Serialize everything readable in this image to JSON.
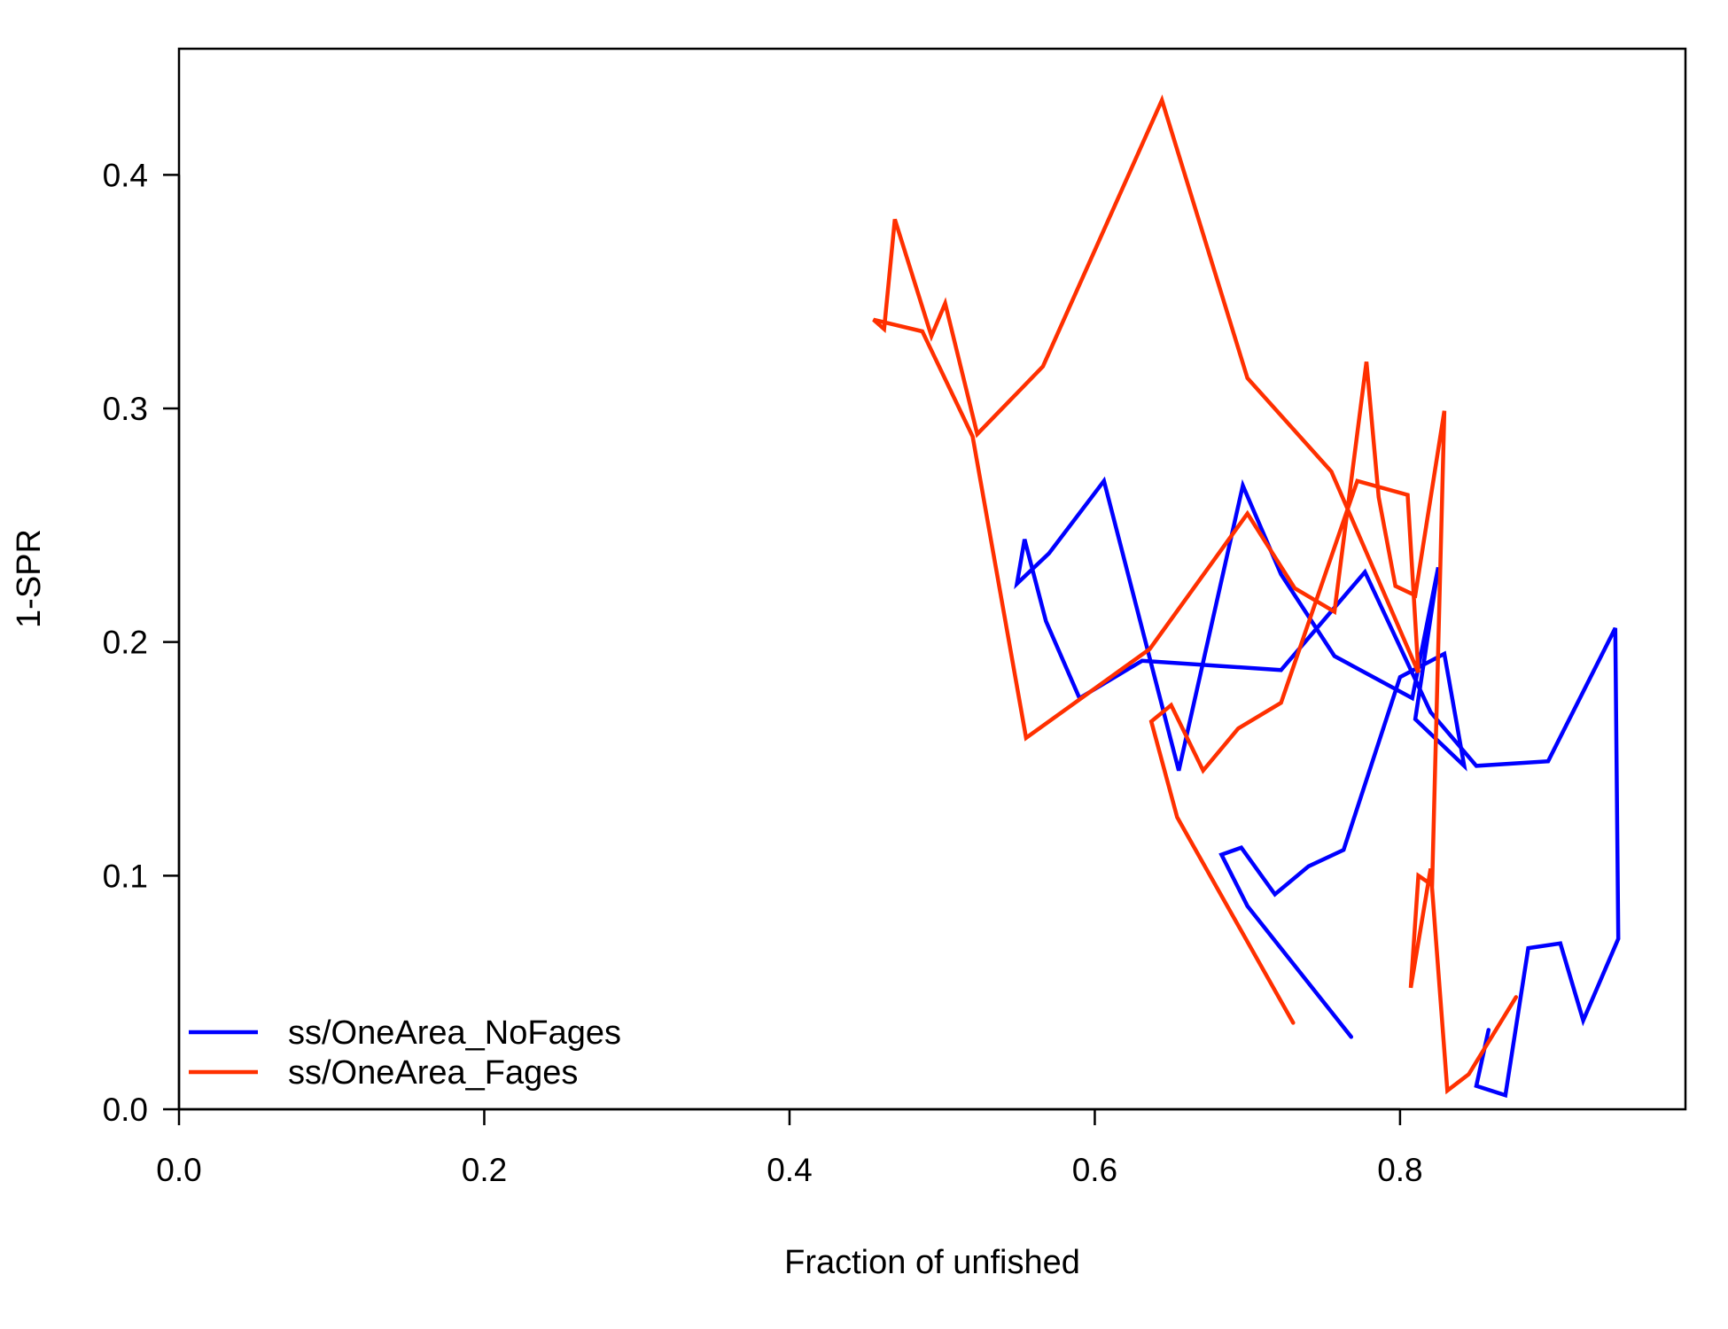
{
  "chart_data": {
    "type": "line",
    "title": "",
    "xlabel": "Fraction of unfished",
    "ylabel": "1-SPR",
    "xlim": [
      0,
      0.987
    ],
    "ylim": [
      0,
      0.454
    ],
    "x_ticks": [
      0.0,
      0.2,
      0.4,
      0.6,
      0.8
    ],
    "x_tick_labels": [
      "0.0",
      "0.2",
      "0.4",
      "0.6",
      "0.8"
    ],
    "y_ticks": [
      0.0,
      0.1,
      0.2,
      0.3,
      0.4
    ],
    "y_tick_labels": [
      "0.0",
      "0.1",
      "0.2",
      "0.3",
      "0.4"
    ],
    "grid": false,
    "legend_position": "bottom-left",
    "series": [
      {
        "name": "ss/OneArea_NoFages",
        "color": "#0000ff",
        "points": [
          [
            0.768,
            0.031
          ],
          [
            0.7,
            0.087
          ],
          [
            0.683,
            0.109
          ],
          [
            0.696,
            0.112
          ],
          [
            0.718,
            0.092
          ],
          [
            0.74,
            0.104
          ],
          [
            0.763,
            0.111
          ],
          [
            0.8,
            0.185
          ],
          [
            0.829,
            0.195
          ],
          [
            0.842,
            0.147
          ],
          [
            0.81,
            0.167
          ],
          [
            0.825,
            0.232
          ],
          [
            0.808,
            0.176
          ],
          [
            0.757,
            0.194
          ],
          [
            0.722,
            0.229
          ],
          [
            0.697,
            0.267
          ],
          [
            0.655,
            0.145
          ],
          [
            0.606,
            0.269
          ],
          [
            0.57,
            0.238
          ],
          [
            0.549,
            0.225
          ],
          [
            0.554,
            0.244
          ],
          [
            0.568,
            0.209
          ],
          [
            0.59,
            0.176
          ],
          [
            0.631,
            0.192
          ],
          [
            0.722,
            0.188
          ],
          [
            0.777,
            0.23
          ],
          [
            0.82,
            0.17
          ],
          [
            0.85,
            0.147
          ],
          [
            0.897,
            0.149
          ],
          [
            0.941,
            0.206
          ],
          [
            0.943,
            0.073
          ],
          [
            0.92,
            0.038
          ],
          [
            0.905,
            0.071
          ],
          [
            0.884,
            0.069
          ],
          [
            0.869,
            0.006
          ],
          [
            0.85,
            0.01
          ],
          [
            0.858,
            0.034
          ]
        ]
      },
      {
        "name": "ss/OneArea_Fages",
        "color": "#ff3000",
        "points": [
          [
            0.73,
            0.037
          ],
          [
            0.654,
            0.125
          ],
          [
            0.637,
            0.166
          ],
          [
            0.65,
            0.173
          ],
          [
            0.671,
            0.145
          ],
          [
            0.694,
            0.163
          ],
          [
            0.722,
            0.174
          ],
          [
            0.772,
            0.269
          ],
          [
            0.805,
            0.263
          ],
          [
            0.812,
            0.187
          ],
          [
            0.755,
            0.273
          ],
          [
            0.7,
            0.313
          ],
          [
            0.644,
            0.432
          ],
          [
            0.566,
            0.318
          ],
          [
            0.523,
            0.289
          ],
          [
            0.502,
            0.345
          ],
          [
            0.493,
            0.331
          ],
          [
            0.469,
            0.381
          ],
          [
            0.462,
            0.334
          ],
          [
            0.455,
            0.338
          ],
          [
            0.487,
            0.333
          ],
          [
            0.52,
            0.288
          ],
          [
            0.555,
            0.159
          ],
          [
            0.636,
            0.197
          ],
          [
            0.7,
            0.255
          ],
          [
            0.731,
            0.223
          ],
          [
            0.757,
            0.213
          ],
          [
            0.778,
            0.32
          ],
          [
            0.786,
            0.262
          ],
          [
            0.797,
            0.224
          ],
          [
            0.81,
            0.22
          ],
          [
            0.829,
            0.299
          ],
          [
            0.821,
            0.096
          ],
          [
            0.812,
            0.1
          ],
          [
            0.807,
            0.052
          ],
          [
            0.82,
            0.103
          ],
          [
            0.831,
            0.008
          ],
          [
            0.845,
            0.015
          ],
          [
            0.876,
            0.048
          ]
        ]
      }
    ]
  }
}
